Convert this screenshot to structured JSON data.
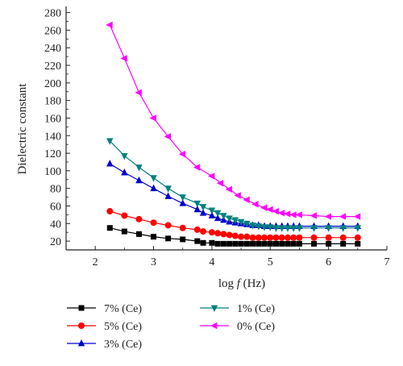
{
  "chart_data": {
    "type": "line",
    "xlabel": {
      "prefix": "log ",
      "var": "f",
      "suffix": " (Hz)"
    },
    "ylabel": "Dielectric constant",
    "xlim": [
      1.5,
      7
    ],
    "ylim": [
      10,
      287
    ],
    "xticks": [
      "2",
      "3",
      "4",
      "5",
      "6",
      "7"
    ],
    "yticks": [
      "20",
      "40",
      "60",
      "80",
      "100",
      "120",
      "140",
      "160",
      "180",
      "200",
      "220",
      "240",
      "260",
      "280"
    ],
    "legend_position": "bottom",
    "series": [
      {
        "name": "7% (Ce)",
        "color": "#000000",
        "marker": "square",
        "x": [
          2.25,
          2.5,
          2.75,
          3.0,
          3.25,
          3.5,
          3.75,
          3.85,
          4.0,
          4.1,
          4.2,
          4.3,
          4.4,
          4.5,
          4.6,
          4.7,
          4.8,
          4.9,
          5.0,
          5.1,
          5.2,
          5.3,
          5.4,
          5.5,
          5.75,
          6.0,
          6.25,
          6.5
        ],
        "y": [
          35,
          31,
          28,
          25,
          23,
          22,
          20,
          18,
          18,
          17,
          17,
          17,
          17,
          17,
          17,
          17,
          17,
          17,
          17,
          17,
          17,
          17,
          17,
          17,
          17,
          17,
          17,
          17
        ]
      },
      {
        "name": "5% (Ce)",
        "color": "#ff0000",
        "marker": "circle",
        "x": [
          2.25,
          2.5,
          2.75,
          3.0,
          3.25,
          3.5,
          3.75,
          3.85,
          4.0,
          4.1,
          4.2,
          4.3,
          4.4,
          4.5,
          4.6,
          4.7,
          4.8,
          4.9,
          5.0,
          5.1,
          5.2,
          5.3,
          5.4,
          5.5,
          5.75,
          6.0,
          6.25,
          6.5
        ],
        "y": [
          54,
          49,
          45,
          41,
          38,
          35,
          33,
          31,
          30,
          29,
          28,
          27,
          26,
          25,
          25,
          24,
          24,
          24,
          24,
          24,
          24,
          24,
          24,
          24,
          24,
          24,
          24,
          24
        ]
      },
      {
        "name": "3% (Ce)",
        "color": "#0000cc",
        "marker": "triangle-up",
        "x": [
          2.25,
          2.5,
          2.75,
          3.0,
          3.25,
          3.5,
          3.75,
          3.85,
          4.0,
          4.1,
          4.2,
          4.3,
          4.4,
          4.5,
          4.6,
          4.7,
          4.8,
          4.9,
          5.0,
          5.1,
          5.2,
          5.3,
          5.4,
          5.5,
          5.75,
          6.0,
          6.25,
          6.5
        ],
        "y": [
          108,
          98,
          89,
          80,
          71,
          63,
          56,
          52,
          49,
          46,
          44,
          42,
          41,
          40,
          39,
          38,
          38,
          37,
          37,
          37,
          37,
          37,
          37,
          37,
          37,
          37,
          37,
          37
        ]
      },
      {
        "name": "1% (Ce)",
        "color": "#008080",
        "marker": "triangle-down",
        "x": [
          2.25,
          2.5,
          2.75,
          3.0,
          3.25,
          3.5,
          3.75,
          3.85,
          4.0,
          4.1,
          4.2,
          4.3,
          4.4,
          4.5,
          4.6,
          4.7,
          4.8,
          4.9,
          5.0,
          5.1,
          5.2,
          5.3,
          5.4,
          5.5,
          5.75,
          6.0,
          6.25,
          6.5
        ],
        "y": [
          134,
          117,
          104,
          92,
          80,
          70,
          63,
          59,
          55,
          52,
          49,
          46,
          44,
          42,
          40,
          38,
          37,
          36,
          36,
          35,
          35,
          35,
          35,
          35,
          35,
          35,
          35,
          35
        ]
      },
      {
        "name": "0% (Ce)",
        "color": "#ff00ff",
        "marker": "triangle-left",
        "x": [
          2.25,
          2.5,
          2.75,
          3.0,
          3.25,
          3.5,
          3.75,
          4.0,
          4.15,
          4.3,
          4.45,
          4.6,
          4.75,
          4.9,
          5.0,
          5.1,
          5.2,
          5.3,
          5.4,
          5.5,
          5.75,
          6.0,
          6.25,
          6.5
        ],
        "y": [
          266,
          228,
          189,
          160,
          139,
          119,
          104,
          94,
          86,
          79,
          72,
          67,
          62,
          58,
          56,
          54,
          52,
          51,
          50,
          50,
          49,
          48,
          48,
          48
        ]
      }
    ]
  }
}
